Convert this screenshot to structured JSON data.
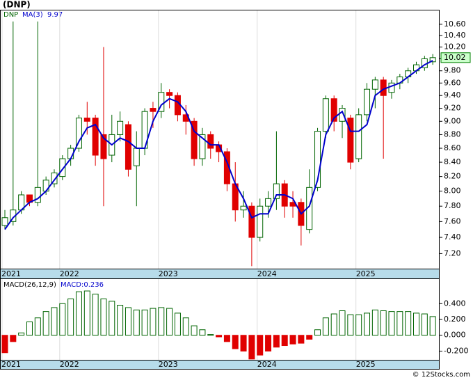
{
  "chart_data": [
    {
      "type": "candlestick",
      "title": "(DNP)",
      "log_scale": true,
      "categories": [
        "2021",
        null,
        null,
        null,
        null,
        null,
        null,
        "2022",
        null,
        null,
        null,
        null,
        null,
        null,
        null,
        null,
        null,
        null,
        null,
        "2023",
        null,
        null,
        null,
        null,
        null,
        null,
        null,
        null,
        null,
        null,
        null,
        "2024",
        null,
        null,
        null,
        null,
        null,
        null,
        null,
        null,
        null,
        null,
        null,
        "2025",
        null,
        null,
        null,
        null,
        null,
        null,
        null,
        null,
        null
      ],
      "series": [
        {
          "name": "DNP",
          "up_color": "#006400",
          "down_color": "#e00000",
          "open": [
            7.55,
            7.6,
            7.75,
            7.95,
            7.85,
            8.0,
            8.1,
            8.2,
            8.45,
            8.6,
            9.05,
            9.05,
            8.8,
            8.5,
            8.8,
            8.95,
            8.35,
            8.6,
            9.2,
            9.15,
            9.45,
            9.4,
            9.1,
            9.0,
            8.45,
            8.8,
            8.65,
            8.55,
            8.1,
            7.75,
            7.8,
            7.4,
            7.8,
            7.9,
            8.1,
            7.85,
            7.85,
            7.5,
            8.05,
            8.85,
            9.35,
            9.0,
            9.05,
            8.45,
            9.1,
            9.5,
            9.65,
            9.45,
            9.6,
            9.7,
            9.8,
            9.85,
            9.95
          ],
          "high": [
            7.75,
            10.65,
            8.0,
            7.95,
            10.65,
            8.2,
            8.3,
            8.5,
            8.65,
            9.1,
            9.3,
            9.1,
            10.2,
            9.1,
            9.15,
            9.0,
            8.85,
            9.2,
            9.3,
            9.6,
            9.5,
            9.45,
            9.25,
            9.05,
            8.9,
            8.85,
            8.7,
            8.6,
            8.4,
            8.0,
            7.85,
            7.9,
            8.0,
            8.85,
            8.15,
            8.0,
            7.9,
            8.3,
            8.9,
            9.4,
            9.4,
            9.25,
            9.1,
            9.2,
            9.6,
            9.7,
            9.7,
            9.65,
            9.75,
            9.85,
            9.95,
            10.05,
            10.08
          ],
          "low": [
            7.5,
            7.55,
            7.7,
            7.8,
            7.8,
            7.95,
            8.05,
            8.15,
            8.35,
            8.55,
            8.8,
            8.35,
            7.8,
            8.4,
            8.7,
            8.2,
            7.8,
            8.5,
            8.9,
            9.05,
            9.2,
            9.0,
            8.8,
            8.35,
            8.35,
            8.45,
            8.4,
            8.0,
            7.6,
            7.65,
            7.05,
            7.35,
            7.65,
            7.75,
            7.65,
            7.65,
            7.3,
            7.45,
            8.0,
            8.75,
            8.85,
            8.75,
            8.3,
            8.4,
            9.0,
            9.2,
            8.45,
            9.35,
            9.5,
            9.6,
            9.75,
            9.8,
            9.9
          ],
          "close": [
            7.65,
            7.75,
            7.95,
            7.85,
            8.05,
            8.15,
            8.25,
            8.45,
            8.6,
            9.05,
            9.0,
            8.5,
            8.45,
            8.8,
            9.0,
            8.3,
            8.6,
            9.15,
            9.15,
            9.45,
            9.4,
            9.1,
            9.0,
            8.45,
            8.8,
            8.6,
            8.55,
            8.1,
            7.75,
            7.8,
            7.4,
            7.8,
            7.9,
            8.1,
            7.8,
            7.8,
            7.55,
            8.05,
            8.85,
            9.35,
            9.0,
            9.2,
            8.4,
            9.1,
            9.5,
            9.65,
            9.4,
            9.6,
            9.7,
            9.8,
            9.9,
            10.0,
            10.02
          ]
        },
        {
          "name": "MA(3)",
          "type": "line",
          "color": "#0000cc",
          "values": [
            7.5,
            7.65,
            7.75,
            7.85,
            7.9,
            8.0,
            8.15,
            8.3,
            8.45,
            8.7,
            8.9,
            8.95,
            8.75,
            8.65,
            8.75,
            8.7,
            8.6,
            8.6,
            9.0,
            9.25,
            9.35,
            9.3,
            9.15,
            8.85,
            8.75,
            8.65,
            8.65,
            8.4,
            8.1,
            7.9,
            7.65,
            7.7,
            7.7,
            7.95,
            7.95,
            7.9,
            7.7,
            7.8,
            8.15,
            8.8,
            9.05,
            9.15,
            8.85,
            8.85,
            8.95,
            9.4,
            9.5,
            9.55,
            9.6,
            9.7,
            9.8,
            9.9,
            9.97
          ]
        }
      ],
      "ylim": [
        7.02,
        10.85
      ],
      "yticks": [
        {
          "value": 7.2,
          "label": "7.20"
        },
        {
          "value": 7.4,
          "label": "7.40"
        },
        {
          "value": 7.6,
          "label": "7.60"
        },
        {
          "value": 7.8,
          "label": "7.80"
        },
        {
          "value": 8.0,
          "label": "8.00"
        },
        {
          "value": 8.2,
          "label": "8.20"
        },
        {
          "value": 8.4,
          "label": "8.40"
        },
        {
          "value": 8.6,
          "label": "8.60"
        },
        {
          "value": 8.8,
          "label": "8.80"
        },
        {
          "value": 9.0,
          "label": "9.00"
        },
        {
          "value": 9.2,
          "label": "9.20"
        },
        {
          "value": 9.4,
          "label": "9.40"
        },
        {
          "value": 9.6,
          "label": "9.60"
        },
        {
          "value": 9.8,
          "label": "9.80"
        },
        {
          "value": 10.0,
          "label": "10.00"
        },
        {
          "value": 10.2,
          "label": "10.20"
        },
        {
          "value": 10.4,
          "label": "10.40"
        },
        {
          "value": 10.6,
          "label": "10.60"
        }
      ]
    },
    {
      "type": "bar",
      "title": "MACD(26,12,9)",
      "value_text": "MACD:0.236",
      "categories": [
        "2021",
        null,
        null,
        null,
        null,
        null,
        null,
        "2022",
        null,
        null,
        null,
        null,
        null,
        null,
        null,
        null,
        null,
        null,
        null,
        "2023",
        null,
        null,
        null,
        null,
        null,
        null,
        null,
        null,
        null,
        null,
        null,
        "2024",
        null,
        null,
        null,
        null,
        null,
        null,
        null,
        null,
        null,
        null,
        null,
        "2025",
        null,
        null,
        null,
        null,
        null,
        null,
        null,
        null,
        null
      ],
      "up_color": "#006400",
      "down_color": "#e00000",
      "values": [
        -0.22,
        -0.08,
        0.03,
        0.17,
        0.22,
        0.3,
        0.35,
        0.4,
        0.46,
        0.55,
        0.56,
        0.52,
        0.46,
        0.43,
        0.38,
        0.35,
        0.32,
        0.32,
        0.34,
        0.35,
        0.34,
        0.28,
        0.22,
        0.12,
        0.07,
        0.01,
        -0.02,
        -0.08,
        -0.17,
        -0.2,
        -0.3,
        -0.25,
        -0.2,
        -0.15,
        -0.13,
        -0.11,
        -0.1,
        -0.05,
        0.07,
        0.22,
        0.27,
        0.31,
        0.26,
        0.26,
        0.28,
        0.32,
        0.31,
        0.3,
        0.3,
        0.3,
        0.28,
        0.27,
        0.236
      ],
      "ylim": [
        -0.31,
        0.71
      ],
      "yticks": [
        {
          "value": -0.2,
          "label": "-0.200"
        },
        {
          "value": 0,
          "label": "0.000"
        },
        {
          "value": 0.2,
          "label": "0.200"
        },
        {
          "value": 0.4,
          "label": "0.400"
        }
      ]
    }
  ],
  "footer": "© 12Stocks.com"
}
